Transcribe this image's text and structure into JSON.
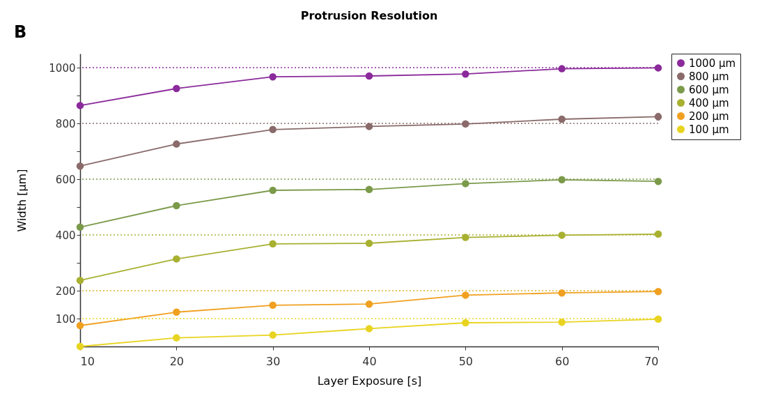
{
  "chart_data": {
    "type": "line",
    "title": "Protrusion Resolution",
    "xlabel": "Layer Exposure [s]",
    "ylabel": "Width [µm]",
    "annotations": [
      "B"
    ],
    "x": [
      10,
      20,
      30,
      40,
      50,
      60,
      70
    ],
    "series": [
      {
        "name": "1000 µm",
        "color": "#8b2a9b",
        "values": [
          864,
          925,
          967,
          970,
          977,
          996,
          999
        ]
      },
      {
        "name": "800 µm",
        "color": "#8a6a6a",
        "values": [
          647,
          726,
          778,
          789,
          798,
          815,
          824
        ],
        "errors": [
          null,
          null,
          null,
          null,
          null,
          10,
          12
        ]
      },
      {
        "name": "600 µm",
        "color": "#7b9a4a",
        "values": [
          428,
          505,
          560,
          563,
          584,
          598,
          592
        ]
      },
      {
        "name": "400 µm",
        "color": "#a8b030",
        "values": [
          237,
          314,
          368,
          370,
          391,
          399,
          403
        ]
      },
      {
        "name": "200 µm",
        "color": "#f0a020",
        "values": [
          75,
          123,
          148,
          152,
          184,
          192,
          197
        ]
      },
      {
        "name": "100 µm",
        "color": "#e8d420",
        "values": [
          0,
          31,
          41,
          64,
          85,
          87,
          98
        ]
      }
    ],
    "xlim": [
      10,
      70
    ],
    "xticks": [
      10,
      20,
      30,
      40,
      50,
      60,
      70
    ],
    "ylim": [
      0,
      1050
    ],
    "yticks": [
      100,
      200,
      {
        "value": 300,
        "label": null
      },
      400,
      {
        "value": 500,
        "label": null
      },
      600,
      {
        "value": 700,
        "label": null
      },
      800,
      {
        "value": 900,
        "label": null
      },
      1000
    ],
    "ref_lines": [
      {
        "axis": "y",
        "value": 1000,
        "color": "#8b2a9b",
        "line_style": "dotted"
      },
      {
        "axis": "y",
        "value": 800,
        "color": "#8a6a6a",
        "line_style": "dotted"
      },
      {
        "axis": "y",
        "value": 600,
        "color": "#7b9a4a",
        "line_style": "dotted"
      },
      {
        "axis": "y",
        "value": 400,
        "color": "#a8b030",
        "line_style": "dotted"
      },
      {
        "axis": "y",
        "value": 200,
        "color": "#e0b020",
        "line_style": "dotted"
      },
      {
        "axis": "y",
        "value": 100,
        "color": "#e8d420",
        "line_style": "dotted"
      }
    ],
    "grid": false,
    "legend": "right",
    "marker": "circle",
    "line_style": "solid"
  }
}
